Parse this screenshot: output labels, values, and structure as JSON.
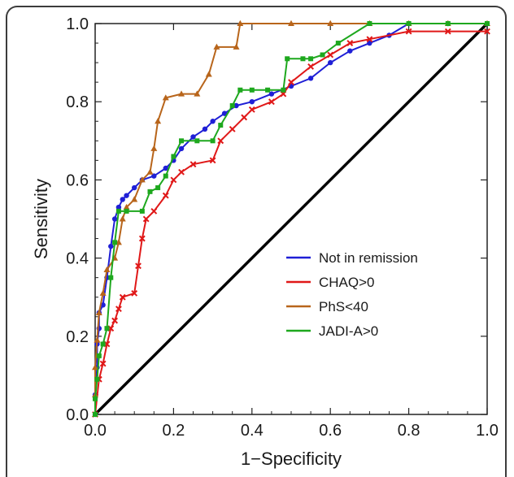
{
  "chart_data": {
    "type": "line",
    "title": "",
    "xlabel": "1−Specificity",
    "ylabel": "Sensitivity",
    "xlim": [
      0,
      1
    ],
    "ylim": [
      0,
      1
    ],
    "x_ticks": [
      "0.0",
      "0.2",
      "0.4",
      "0.6",
      "0.8",
      "1.0"
    ],
    "y_ticks": [
      "0.0",
      "0.2",
      "0.4",
      "0.6",
      "0.8",
      "1.0"
    ],
    "legend_position": "lower-right",
    "grid": false,
    "reference_line": {
      "x": [
        0,
        1
      ],
      "y": [
        0,
        1
      ],
      "color": "#000000"
    },
    "series": [
      {
        "name": "Not in remission",
        "color": "#1f1fd6",
        "marker": "circle",
        "points": [
          [
            0,
            0
          ],
          [
            0,
            0.05
          ],
          [
            0.005,
            0.12
          ],
          [
            0.005,
            0.18
          ],
          [
            0.01,
            0.22
          ],
          [
            0.01,
            0.26
          ],
          [
            0.02,
            0.28
          ],
          [
            0.03,
            0.35
          ],
          [
            0.04,
            0.43
          ],
          [
            0.05,
            0.5
          ],
          [
            0.06,
            0.53
          ],
          [
            0.07,
            0.55
          ],
          [
            0.08,
            0.56
          ],
          [
            0.1,
            0.58
          ],
          [
            0.12,
            0.6
          ],
          [
            0.15,
            0.61
          ],
          [
            0.18,
            0.63
          ],
          [
            0.2,
            0.65
          ],
          [
            0.22,
            0.68
          ],
          [
            0.25,
            0.71
          ],
          [
            0.28,
            0.73
          ],
          [
            0.3,
            0.75
          ],
          [
            0.33,
            0.77
          ],
          [
            0.36,
            0.79
          ],
          [
            0.4,
            0.8
          ],
          [
            0.45,
            0.82
          ],
          [
            0.5,
            0.84
          ],
          [
            0.55,
            0.86
          ],
          [
            0.6,
            0.9
          ],
          [
            0.65,
            0.93
          ],
          [
            0.7,
            0.95
          ],
          [
            0.75,
            0.97
          ],
          [
            0.8,
            1.0
          ],
          [
            0.9,
            1.0
          ],
          [
            1.0,
            1.0
          ]
        ]
      },
      {
        "name": "CHAQ>0",
        "color": "#e01818",
        "marker": "x",
        "points": [
          [
            0,
            0
          ],
          [
            0.01,
            0.09
          ],
          [
            0.02,
            0.13
          ],
          [
            0.03,
            0.18
          ],
          [
            0.04,
            0.22
          ],
          [
            0.05,
            0.24
          ],
          [
            0.06,
            0.27
          ],
          [
            0.07,
            0.3
          ],
          [
            0.1,
            0.31
          ],
          [
            0.11,
            0.38
          ],
          [
            0.12,
            0.45
          ],
          [
            0.13,
            0.5
          ],
          [
            0.15,
            0.52
          ],
          [
            0.18,
            0.56
          ],
          [
            0.2,
            0.6
          ],
          [
            0.22,
            0.62
          ],
          [
            0.25,
            0.64
          ],
          [
            0.3,
            0.65
          ],
          [
            0.32,
            0.7
          ],
          [
            0.35,
            0.73
          ],
          [
            0.38,
            0.76
          ],
          [
            0.4,
            0.78
          ],
          [
            0.45,
            0.8
          ],
          [
            0.48,
            0.82
          ],
          [
            0.5,
            0.85
          ],
          [
            0.55,
            0.89
          ],
          [
            0.6,
            0.92
          ],
          [
            0.65,
            0.95
          ],
          [
            0.7,
            0.96
          ],
          [
            0.8,
            0.98
          ],
          [
            0.9,
            0.98
          ],
          [
            1.0,
            0.98
          ]
        ]
      },
      {
        "name": "PhS<40",
        "color": "#b8651b",
        "marker": "triangle",
        "points": [
          [
            0,
            0
          ],
          [
            0,
            0.05
          ],
          [
            0,
            0.12
          ],
          [
            0.005,
            0.19
          ],
          [
            0.01,
            0.26
          ],
          [
            0.02,
            0.31
          ],
          [
            0.03,
            0.37
          ],
          [
            0.05,
            0.4
          ],
          [
            0.06,
            0.44
          ],
          [
            0.07,
            0.5
          ],
          [
            0.08,
            0.53
          ],
          [
            0.1,
            0.55
          ],
          [
            0.12,
            0.6
          ],
          [
            0.14,
            0.62
          ],
          [
            0.15,
            0.68
          ],
          [
            0.16,
            0.75
          ],
          [
            0.18,
            0.81
          ],
          [
            0.22,
            0.82
          ],
          [
            0.26,
            0.82
          ],
          [
            0.29,
            0.87
          ],
          [
            0.31,
            0.94
          ],
          [
            0.36,
            0.94
          ],
          [
            0.37,
            1.0
          ],
          [
            0.5,
            1.0
          ],
          [
            0.6,
            1.0
          ],
          [
            0.7,
            1.0
          ],
          [
            0.8,
            1.0
          ],
          [
            0.9,
            1.0
          ],
          [
            1.0,
            1.0
          ]
        ]
      },
      {
        "name": "JADI-A>0",
        "color": "#1ea81e",
        "marker": "square",
        "points": [
          [
            0,
            0
          ],
          [
            0,
            0.04
          ],
          [
            0.005,
            0.09
          ],
          [
            0.01,
            0.15
          ],
          [
            0.02,
            0.18
          ],
          [
            0.03,
            0.22
          ],
          [
            0.04,
            0.35
          ],
          [
            0.05,
            0.44
          ],
          [
            0.06,
            0.52
          ],
          [
            0.08,
            0.52
          ],
          [
            0.12,
            0.52
          ],
          [
            0.14,
            0.57
          ],
          [
            0.16,
            0.58
          ],
          [
            0.18,
            0.61
          ],
          [
            0.2,
            0.66
          ],
          [
            0.22,
            0.7
          ],
          [
            0.26,
            0.7
          ],
          [
            0.3,
            0.7
          ],
          [
            0.32,
            0.74
          ],
          [
            0.35,
            0.79
          ],
          [
            0.37,
            0.83
          ],
          [
            0.4,
            0.83
          ],
          [
            0.44,
            0.83
          ],
          [
            0.48,
            0.83
          ],
          [
            0.49,
            0.91
          ],
          [
            0.53,
            0.91
          ],
          [
            0.55,
            0.91
          ],
          [
            0.58,
            0.92
          ],
          [
            0.62,
            0.95
          ],
          [
            0.7,
            1.0
          ],
          [
            0.8,
            1.0
          ],
          [
            0.9,
            1.0
          ],
          [
            1.0,
            1.0
          ]
        ]
      }
    ]
  }
}
